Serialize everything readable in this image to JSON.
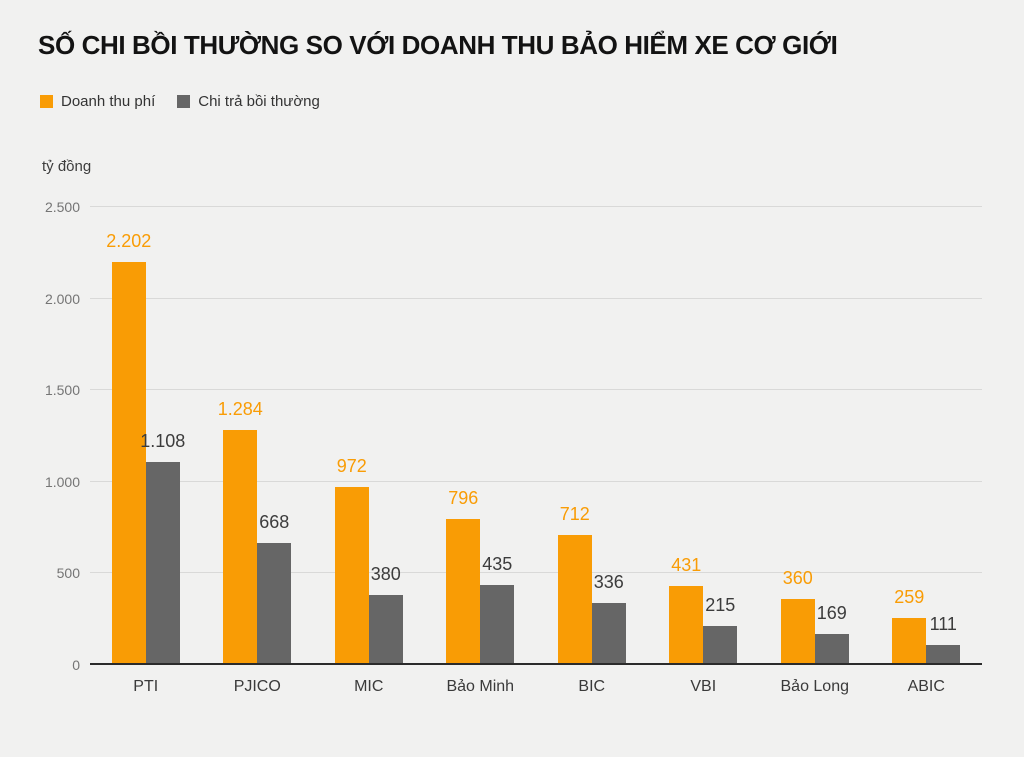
{
  "title": "SỐ CHI BỒI THƯỜNG SO VỚI DOANH THU BẢO HIỂM XE CƠ GIỚI",
  "unit_label": "tỷ đồng",
  "legend": {
    "items": [
      {
        "label": "Doanh thu phí",
        "color": "#f99c05"
      },
      {
        "label": "Chi trả bồi thường",
        "color": "#666666"
      }
    ]
  },
  "colors": {
    "background": "#f1f1f0",
    "grid": "#d9d9d8",
    "axis": "#2b2b2b",
    "tick_text": "#757575",
    "category_text": "#3a3a3a"
  },
  "chart_data": {
    "type": "bar",
    "title": "SỐ CHI BỒI THƯỜNG SO VỚI DOANH THU BẢO HIỂM XE CƠ GIỚI",
    "ylabel": "tỷ đồng",
    "categories": [
      "PTI",
      "PJICO",
      "MIC",
      "Bảo Minh",
      "BIC",
      "VBI",
      "Bảo Long",
      "ABIC"
    ],
    "series": [
      {
        "name": "Doanh thu phí",
        "color": "#f99c05",
        "label_color": "#f99c05",
        "values": [
          2202,
          1284,
          972,
          796,
          712,
          431,
          360,
          259
        ],
        "labels": [
          "2.202",
          "1.284",
          "972",
          "796",
          "712",
          "431",
          "360",
          "259"
        ]
      },
      {
        "name": "Chi trả bồi thường",
        "color": "#666666",
        "label_color": "#3c3c3c",
        "values": [
          1108,
          668,
          380,
          435,
          336,
          215,
          169,
          111
        ],
        "labels": [
          "1.108",
          "668",
          "380",
          "435",
          "336",
          "215",
          "169",
          "111"
        ]
      }
    ],
    "ylim": [
      0,
      2500
    ],
    "yticks": [
      0,
      500,
      1000,
      1500,
      2000,
      2500
    ],
    "ytick_labels": [
      "0",
      "500",
      "1.000",
      "1.500",
      "2.000",
      "2.500"
    ],
    "grid": true,
    "legend_position": "top-left"
  }
}
